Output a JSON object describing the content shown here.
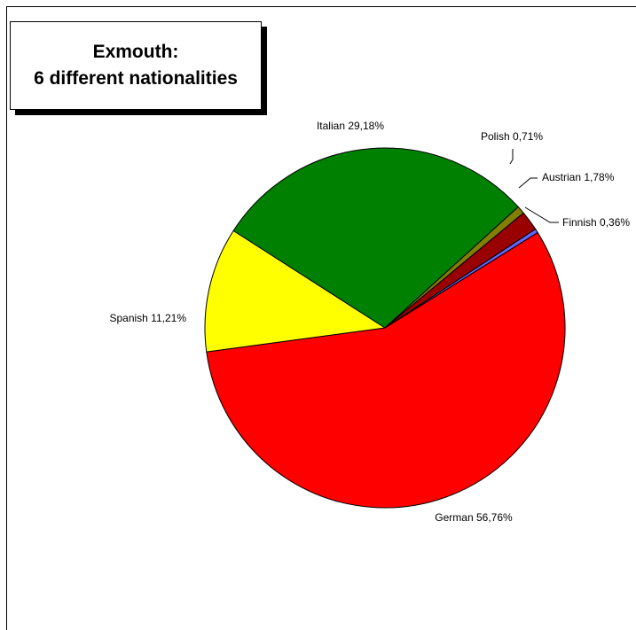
{
  "title": {
    "line1": "Exmouth:",
    "line2": "6 different nationalities"
  },
  "chart_data": {
    "type": "pie",
    "title": "Exmouth: 6 different nationalities",
    "slices": [
      {
        "label": "German 56,76%",
        "value": 56.76,
        "color": "#ff0000"
      },
      {
        "label": "Spanish 11,21%",
        "value": 11.21,
        "color": "#ffff00"
      },
      {
        "label": "Italian 29,18%",
        "value": 29.18,
        "color": "#008000"
      },
      {
        "label": "Polish 0,71%",
        "value": 0.71,
        "color": "#808000"
      },
      {
        "label": "Austrian 1,78%",
        "value": 1.78,
        "color": "#990000"
      },
      {
        "label": "Finnish 0,36%",
        "value": 0.36,
        "color": "#6666ff"
      }
    ]
  }
}
